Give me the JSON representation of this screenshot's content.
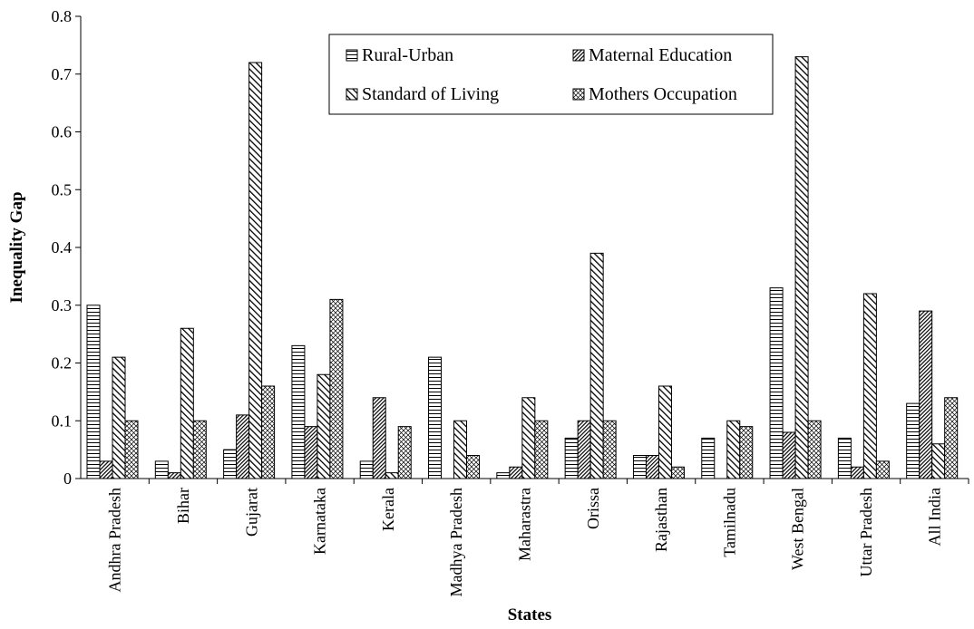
{
  "chart_data": {
    "type": "bar",
    "title": "",
    "xlabel": "States",
    "ylabel": "Inequality Gap",
    "ylim": [
      0,
      0.8
    ],
    "yticks": [
      "0",
      "0.1",
      "0.2",
      "0.3",
      "0.4",
      "0.5",
      "0.6",
      "0.7",
      "0.8"
    ],
    "grid": false,
    "legend_position": "top-center",
    "categories": [
      "Andhra Pradesh",
      "Bihar",
      "Gujarat",
      "Karnataka",
      "Kerala",
      "Madhya Pradesh",
      "Maharastra",
      "Orissa",
      "Rajasthan",
      "Tamilnadu",
      "West Bengal",
      "Uttar Pradesh",
      "All India"
    ],
    "legend_series": [
      "Rural-Urban",
      "Maternal Education",
      "Standard of Living",
      "Mothers Occupation"
    ],
    "series": [
      {
        "name": "Rural-Urban",
        "pattern": "horizontal-lines",
        "values": [
          0.3,
          0.03,
          0.05,
          0.23,
          0.03,
          0.21,
          0.01,
          0.07,
          0.04,
          0.07,
          0.33,
          0.07,
          0.13
        ]
      },
      {
        "name": "Maternal Education",
        "pattern": "fine-diagonal",
        "values": [
          0.03,
          0.01,
          0.11,
          0.09,
          0.14,
          0.0,
          0.02,
          0.1,
          0.04,
          0.0,
          0.08,
          0.02,
          0.29
        ]
      },
      {
        "name": "Standard of Living",
        "pattern": "wide-diagonal",
        "values": [
          0.21,
          0.26,
          0.72,
          0.18,
          0.01,
          0.1,
          0.14,
          0.39,
          0.16,
          0.1,
          0.73,
          0.32,
          0.06
        ]
      },
      {
        "name": "Mothers Occupation",
        "pattern": "crosshatch",
        "values": [
          0.1,
          0.1,
          0.16,
          0.31,
          0.09,
          0.04,
          0.1,
          0.1,
          0.02,
          0.09,
          0.1,
          0.03,
          0.14
        ]
      }
    ]
  }
}
